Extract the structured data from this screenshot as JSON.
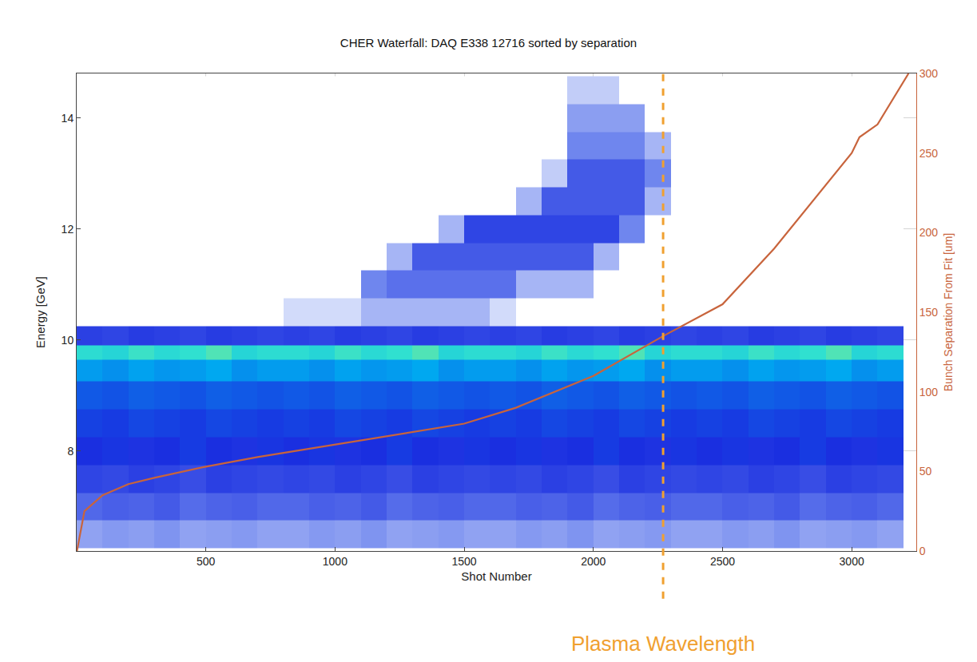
{
  "chart_data": {
    "type": "heatmap",
    "title": "CHER Waterfall: DAQ E338 12716 sorted by separation",
    "x_label": "Shot Number",
    "y_label": "Energy [GeV]",
    "y2_label": "Bunch Separation From Fit [um]",
    "xlim": [
      0,
      3250
    ],
    "xticks": [
      500,
      1000,
      1500,
      2000,
      2500,
      3000
    ],
    "ylim": [
      6.2,
      14.8
    ],
    "yticks": [
      8,
      10,
      12,
      14
    ],
    "y2lim": [
      0,
      300
    ],
    "y2ticks": [
      0,
      50,
      100,
      150,
      200,
      250,
      300
    ],
    "grid": true,
    "heatmap": {
      "zlim": [
        0,
        1
      ],
      "x": [
        50,
        150,
        250,
        350,
        450,
        550,
        650,
        750,
        850,
        950,
        1050,
        1150,
        1250,
        1350,
        1450,
        1550,
        1650,
        1750,
        1850,
        1950,
        2050,
        2150,
        2250,
        2350,
        2450,
        2550,
        2650,
        2750,
        2850,
        2950,
        3050,
        3150
      ],
      "y": [
        6.5,
        7.0,
        7.5,
        8.0,
        8.5,
        9.0,
        9.5,
        9.8,
        10.0,
        10.5,
        11.0,
        11.5,
        12.0,
        12.5,
        13.0,
        13.5,
        14.0,
        14.5
      ],
      "z": [
        [
          0.24,
          0.26,
          0.25,
          0.27,
          0.24,
          0.25,
          0.26,
          0.24,
          0.24,
          0.26,
          0.25,
          0.27,
          0.24,
          0.25,
          0.26,
          0.24,
          0.24,
          0.26,
          0.25,
          0.27,
          0.24,
          0.25,
          0.26,
          0.24,
          0.24,
          0.26,
          0.25,
          0.27,
          0.24,
          0.25,
          0.26,
          0.24
        ],
        [
          0.37,
          0.39,
          0.38,
          0.4,
          0.36,
          0.38,
          0.39,
          0.37,
          0.37,
          0.39,
          0.38,
          0.4,
          0.36,
          0.38,
          0.39,
          0.37,
          0.37,
          0.39,
          0.38,
          0.4,
          0.36,
          0.38,
          0.39,
          0.37,
          0.37,
          0.39,
          0.38,
          0.4,
          0.36,
          0.38,
          0.39,
          0.37
        ],
        [
          0.45,
          0.44,
          0.46,
          0.45,
          0.43,
          0.46,
          0.45,
          0.44,
          0.45,
          0.44,
          0.46,
          0.45,
          0.43,
          0.46,
          0.45,
          0.44,
          0.45,
          0.44,
          0.46,
          0.45,
          0.43,
          0.46,
          0.45,
          0.44,
          0.45,
          0.44,
          0.46,
          0.45,
          0.43,
          0.46,
          0.45,
          0.44
        ],
        [
          0.5,
          0.51,
          0.49,
          0.5,
          0.52,
          0.5,
          0.49,
          0.51,
          0.5,
          0.51,
          0.49,
          0.5,
          0.52,
          0.5,
          0.49,
          0.51,
          0.5,
          0.51,
          0.49,
          0.5,
          0.52,
          0.5,
          0.49,
          0.51,
          0.5,
          0.51,
          0.49,
          0.5,
          0.52,
          0.5,
          0.49,
          0.51
        ],
        [
          0.53,
          0.52,
          0.54,
          0.53,
          0.52,
          0.54,
          0.53,
          0.52,
          0.53,
          0.52,
          0.54,
          0.53,
          0.52,
          0.54,
          0.53,
          0.52,
          0.53,
          0.52,
          0.54,
          0.53,
          0.52,
          0.54,
          0.53,
          0.52,
          0.53,
          0.52,
          0.54,
          0.53,
          0.52,
          0.54,
          0.53,
          0.52
        ],
        [
          0.57,
          0.56,
          0.58,
          0.57,
          0.56,
          0.58,
          0.57,
          0.56,
          0.57,
          0.56,
          0.58,
          0.57,
          0.56,
          0.58,
          0.57,
          0.56,
          0.57,
          0.56,
          0.58,
          0.57,
          0.56,
          0.58,
          0.57,
          0.56,
          0.57,
          0.56,
          0.58,
          0.57,
          0.56,
          0.58,
          0.57,
          0.56
        ],
        [
          0.68,
          0.66,
          0.69,
          0.67,
          0.68,
          0.7,
          0.66,
          0.68,
          0.68,
          0.66,
          0.69,
          0.67,
          0.68,
          0.7,
          0.66,
          0.68,
          0.68,
          0.66,
          0.69,
          0.67,
          0.68,
          0.7,
          0.66,
          0.68,
          0.68,
          0.66,
          0.69,
          0.67,
          0.68,
          0.7,
          0.66,
          0.68
        ],
        [
          0.84,
          0.82,
          0.86,
          0.83,
          0.85,
          0.88,
          0.82,
          0.84,
          0.84,
          0.82,
          0.86,
          0.83,
          0.85,
          0.88,
          0.82,
          0.84,
          0.84,
          0.82,
          0.86,
          0.83,
          0.85,
          0.88,
          0.82,
          0.84,
          0.84,
          0.82,
          0.86,
          0.83,
          0.85,
          0.88,
          0.82,
          0.84
        ],
        [
          0.46,
          0.45,
          0.47,
          0.46,
          0.45,
          0.47,
          0.46,
          0.45,
          0.46,
          0.45,
          0.47,
          0.46,
          0.45,
          0.47,
          0.46,
          0.45,
          0.46,
          0.45,
          0.47,
          0.46,
          0.45,
          0.47,
          0.46,
          0.45,
          0.46,
          0.45,
          0.47,
          0.46,
          0.45,
          0.47,
          0.46,
          0.45
        ],
        [
          0,
          0,
          0,
          0,
          0,
          0,
          0,
          0,
          0.12,
          0.12,
          0.12,
          0.2,
          0.2,
          0.2,
          0.2,
          0.2,
          0.12,
          0,
          0,
          0,
          0,
          0,
          0,
          0,
          0,
          0,
          0,
          0,
          0,
          0,
          0,
          0
        ],
        [
          0,
          0,
          0,
          0,
          0,
          0,
          0,
          0,
          0,
          0,
          0,
          0.3,
          0.35,
          0.35,
          0.35,
          0.35,
          0.35,
          0.2,
          0.2,
          0.2,
          0,
          0,
          0,
          0,
          0,
          0,
          0,
          0,
          0,
          0,
          0,
          0
        ],
        [
          0,
          0,
          0,
          0,
          0,
          0,
          0,
          0,
          0,
          0,
          0,
          0,
          0.2,
          0.4,
          0.4,
          0.4,
          0.4,
          0.4,
          0.4,
          0.4,
          0.2,
          0,
          0,
          0,
          0,
          0,
          0,
          0,
          0,
          0,
          0,
          0
        ],
        [
          0,
          0,
          0,
          0,
          0,
          0,
          0,
          0,
          0,
          0,
          0,
          0,
          0,
          0,
          0.2,
          0.45,
          0.45,
          0.45,
          0.45,
          0.45,
          0.45,
          0.3,
          0,
          0,
          0,
          0,
          0,
          0,
          0,
          0,
          0,
          0
        ],
        [
          0,
          0,
          0,
          0,
          0,
          0,
          0,
          0,
          0,
          0,
          0,
          0,
          0,
          0,
          0,
          0,
          0,
          0.2,
          0.4,
          0.4,
          0.4,
          0.4,
          0.2,
          0,
          0,
          0,
          0,
          0,
          0,
          0,
          0,
          0
        ],
        [
          0,
          0,
          0,
          0,
          0,
          0,
          0,
          0,
          0,
          0,
          0,
          0,
          0,
          0,
          0,
          0,
          0,
          0,
          0.15,
          0.4,
          0.4,
          0.4,
          0.3,
          0,
          0,
          0,
          0,
          0,
          0,
          0,
          0,
          0
        ],
        [
          0,
          0,
          0,
          0,
          0,
          0,
          0,
          0,
          0,
          0,
          0,
          0,
          0,
          0,
          0,
          0,
          0,
          0,
          0,
          0.3,
          0.3,
          0.3,
          0.2,
          0,
          0,
          0,
          0,
          0,
          0,
          0,
          0,
          0
        ],
        [
          0,
          0,
          0,
          0,
          0,
          0,
          0,
          0,
          0,
          0,
          0,
          0,
          0,
          0,
          0,
          0,
          0,
          0,
          0,
          0.25,
          0.25,
          0.25,
          0,
          0,
          0,
          0,
          0,
          0,
          0,
          0,
          0,
          0
        ],
        [
          0,
          0,
          0,
          0,
          0,
          0,
          0,
          0,
          0,
          0,
          0,
          0,
          0,
          0,
          0,
          0,
          0,
          0,
          0,
          0.15,
          0.15,
          0,
          0,
          0,
          0,
          0,
          0,
          0,
          0,
          0,
          0,
          0
        ]
      ]
    },
    "series": [
      {
        "type": "line",
        "axis": "y2",
        "color": "#c8643c",
        "x": [
          1,
          30,
          100,
          200,
          300,
          500,
          700,
          1000,
          1200,
          1500,
          1700,
          2000,
          2270,
          2500,
          2700,
          2900,
          3000,
          3030,
          3100,
          3220
        ],
        "values": [
          0,
          25,
          35,
          42,
          46,
          53,
          59,
          67,
          72,
          80,
          90,
          110,
          135,
          155,
          190,
          230,
          250,
          260,
          268,
          300
        ]
      }
    ],
    "annotations": [
      {
        "text": "Plasma Wavelength",
        "x": 2270,
        "color": "#f0a030",
        "line_style": "dashed"
      }
    ]
  }
}
